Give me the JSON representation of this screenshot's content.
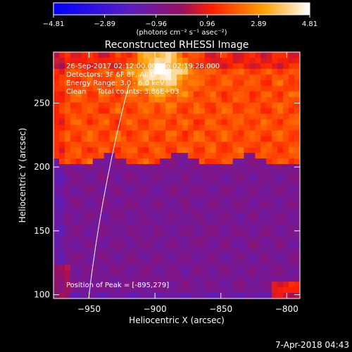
{
  "chart_data": {
    "type": "heatmap",
    "title": "Reconstructed RHESSI Image",
    "xlabel": "Heliocentric X (arcsec)",
    "ylabel": "Heliocentric Y (arcsec)",
    "xlim": [
      -977,
      -790
    ],
    "ylim": [
      97,
      290
    ],
    "xticks": [
      -950,
      -900,
      -850,
      -800
    ],
    "yticks": [
      100,
      150,
      200,
      250
    ],
    "xtick_labels": [
      "−950",
      "−900",
      "−850",
      "−800"
    ],
    "ytick_labels": [
      "100",
      "150",
      "200",
      "250"
    ],
    "colorbar": {
      "min": -4.81,
      "max": 4.81,
      "ticks": [
        -4.81,
        -2.89,
        -0.96,
        0.96,
        2.89,
        4.81
      ],
      "tick_labels": [
        "−4.81",
        "−2.89",
        "−0.96",
        "0.96",
        "2.89",
        "4.81"
      ],
      "label": "(photons cm⁻² s⁻¹ asec⁻²)",
      "colors": [
        "#0000ff",
        "#6a1fb0",
        "#ff2a00",
        "#ffa000",
        "#ffffff"
      ]
    },
    "peak": [
      -895,
      279
    ],
    "boundary_y": 205,
    "annotations": {
      "time_range": "26-Sep-2017 02:12:00.000 to 02:19:28.000",
      "detectors": "Detectors: 3F 6F 8F, All D",
      "energy": "Energy Range: 3.0 - 6.0 keV",
      "clean": "Clean     Total counts: 3.86E+03",
      "peak_text": "Position of Peak = [-895,279]"
    }
  },
  "footer": {
    "timestamp": "7-Apr-2018 04:43"
  }
}
